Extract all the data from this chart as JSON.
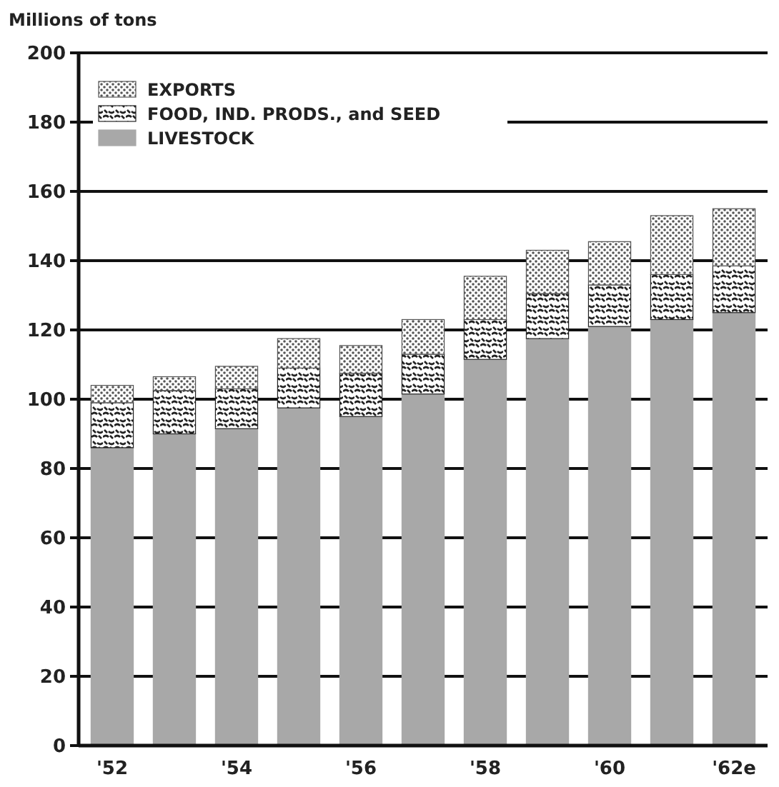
{
  "chart_data": {
    "type": "bar",
    "stacked": true,
    "ylabel": "Millions of tons",
    "categories": [
      "'52",
      null,
      "'54",
      null,
      "'56",
      null,
      "'58",
      null,
      "'60",
      null,
      "'62e"
    ],
    "series": [
      {
        "name": "LIVESTOCK",
        "color": "#a8a8a8",
        "values": [
          86,
          90,
          91.5,
          97.5,
          95,
          101.5,
          111.5,
          117.5,
          121,
          123,
          125
        ]
      },
      {
        "name": "FOOD, IND. PRODS., and SEED",
        "color": "#222222",
        "values": [
          13,
          12.5,
          11.5,
          11.5,
          12.5,
          11.5,
          11.5,
          13,
          12,
          13,
          13.5
        ]
      },
      {
        "name": "EXPORTS",
        "color": "#555555",
        "values": [
          5,
          4,
          6.5,
          8.5,
          8,
          10,
          12.5,
          12.5,
          12.5,
          17,
          16.5
        ]
      }
    ],
    "ylim": [
      0,
      200
    ],
    "yticks": [
      0,
      20,
      40,
      60,
      80,
      100,
      120,
      140,
      160,
      180,
      200
    ],
    "grid": "y",
    "legend": "top left"
  }
}
